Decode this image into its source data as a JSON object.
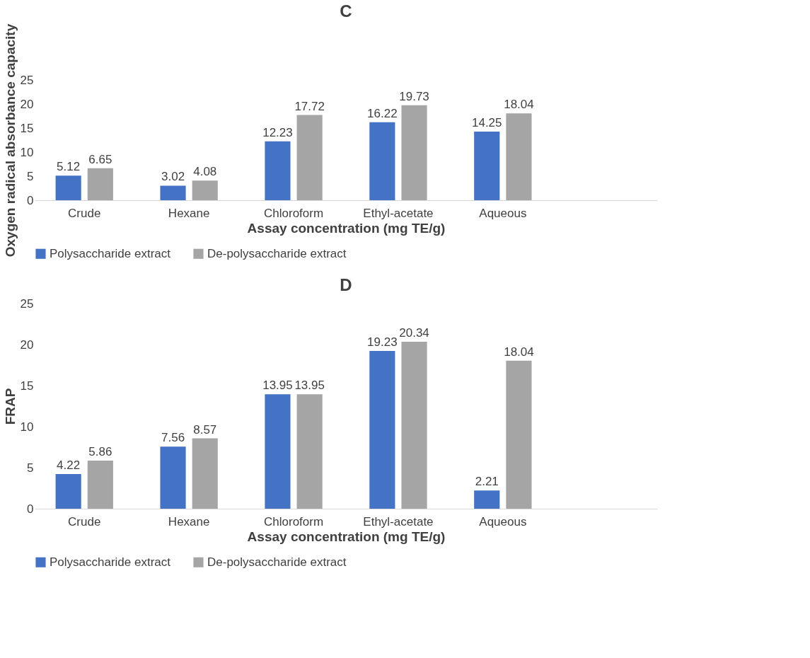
{
  "chart_data": [
    {
      "type": "bar",
      "title": "C",
      "xlabel": "Assay concentration (mg TE/g)",
      "ylabel": "Oxygen radical absorbance capacity",
      "categories": [
        "Crude",
        "Hexane",
        "Chloroform",
        "Ethyl-acetate",
        "Aqueous",
        null
      ],
      "series": [
        {
          "name": "Polysaccharide extract",
          "color": "#4472c4",
          "values": [
            5.12,
            3.02,
            12.23,
            16.22,
            14.25,
            null
          ]
        },
        {
          "name": "De-polysaccharide extract",
          "color": "#a5a5a5",
          "values": [
            6.65,
            4.08,
            17.72,
            19.73,
            18.04,
            null
          ]
        }
      ],
      "ylim": [
        0,
        25
      ],
      "yticks": [
        0,
        5,
        10,
        15,
        20,
        25
      ],
      "grid": false,
      "legend": "bottom",
      "data_labels": true
    },
    {
      "type": "bar",
      "title": "D",
      "xlabel": "Assay concentration (mg TE/g)",
      "ylabel": "FRAP",
      "categories": [
        "Crude",
        "Hexane",
        "Chloroform",
        "Ethyl-acetate",
        "Aqueous",
        null
      ],
      "series": [
        {
          "name": "Polysaccharide extract",
          "color": "#4472c4",
          "values": [
            4.22,
            7.56,
            13.95,
            19.23,
            2.21,
            null
          ]
        },
        {
          "name": "De-polysaccharide extract",
          "color": "#a5a5a5",
          "values": [
            5.86,
            8.57,
            13.95,
            20.34,
            18.04,
            null
          ]
        }
      ],
      "ylim": [
        0,
        25
      ],
      "yticks": [
        0,
        5,
        10,
        15,
        20,
        25
      ],
      "grid": false,
      "legend": "bottom",
      "data_labels": true
    }
  ]
}
